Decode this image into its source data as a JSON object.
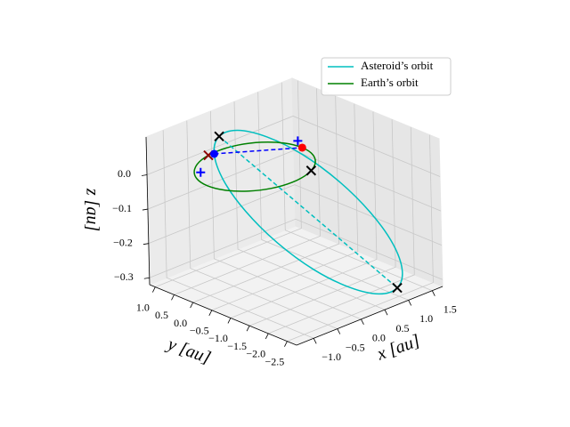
{
  "chart_data": {
    "type": "line3d",
    "xlabel": "x [au]",
    "ylabel": "y [au]",
    "zlabel": "z [au]",
    "xlim": [
      -1.36,
      1.72
    ],
    "ylim": [
      -2.75,
      1.15
    ],
    "zlim": [
      -0.32,
      0.11
    ],
    "xticks": [
      {
        "value": -1.0,
        "label": "−1.0"
      },
      {
        "value": -0.5,
        "label": "−0.5"
      },
      {
        "value": 0.0,
        "label": "0.0"
      },
      0.5,
      {
        "value": 1.0,
        "label": "1.0"
      },
      1.5
    ],
    "yticks": [
      {
        "value": 1.0,
        "label": "1.0"
      },
      0.5,
      {
        "value": 0.0,
        "label": "0.0"
      },
      {
        "value": -0.5,
        "label": "−0.5"
      },
      {
        "value": -1.0,
        "label": "−1.0"
      },
      {
        "value": -1.5,
        "label": "−1.5"
      },
      {
        "value": -2.0,
        "label": "−2.0"
      },
      {
        "value": -2.5,
        "label": "−2.5"
      }
    ],
    "zticks": [
      {
        "value": -0.3,
        "label": "−0.3"
      },
      {
        "value": -0.2,
        "label": "−0.2"
      },
      {
        "value": -0.1,
        "label": "−0.1"
      },
      {
        "value": 0.0,
        "label": "0.0"
      }
    ],
    "grid": true,
    "legend": "upper right",
    "series": [
      {
        "name": "Asteroid’s orbit",
        "color": "#00bfbf",
        "x": [
          1.2,
          1.574,
          1.776,
          1.777,
          1.576,
          1.203,
          0.716,
          0.188,
          -0.3,
          -0.674,
          -0.876,
          -0.877,
          -0.676,
          -0.303,
          0.184,
          0.712,
          1.2
        ],
        "y": [
          -2.2,
          -1.865,
          -1.371,
          -0.796,
          -0.223,
          0.258,
          0.573,
          0.675,
          0.55,
          0.215,
          -0.279,
          -0.854,
          -1.427,
          -1.908,
          -2.223,
          -2.325,
          -2.2
        ],
        "z": [
          -0.32,
          -0.305,
          -0.261,
          -0.197,
          -0.12,
          -0.043,
          0.021,
          0.065,
          0.08,
          0.065,
          0.021,
          -0.043,
          -0.12,
          -0.197,
          -0.261,
          -0.305,
          -0.32
        ]
      },
      {
        "name": "Earth’s orbit",
        "color": "#008000",
        "x": [
          1,
          0.924,
          0.707,
          0.383,
          0,
          -0.383,
          -0.707,
          -0.924,
          -1,
          -0.924,
          -0.707,
          -0.383,
          0,
          0.383,
          0.707,
          0.924,
          1
        ],
        "y": [
          0,
          0.383,
          0.707,
          0.924,
          1,
          0.924,
          0.707,
          0.383,
          0,
          -0.383,
          -0.707,
          -0.924,
          -1,
          -0.924,
          -0.707,
          -0.383,
          0
        ],
        "z": [
          0,
          0,
          0,
          0,
          0,
          0,
          0,
          0,
          0,
          0,
          0,
          0,
          0,
          0,
          0,
          0,
          0
        ]
      }
    ],
    "dashed_lines": [
      {
        "color": "#00bfbf",
        "x": [
          -0.3,
          1.2
        ],
        "y": [
          0.55,
          -2.2
        ],
        "z": [
          0.08,
          -0.32
        ]
      },
      {
        "color": "#0000ff",
        "x": [
          -0.674,
          1.0
        ],
        "y": [
          0.215,
          0.0
        ],
        "z": [
          0.065,
          0
        ]
      }
    ],
    "markers": [
      {
        "marker": "x",
        "color": "#000000",
        "x": -0.3,
        "y": 0.55,
        "z": 0.08
      },
      {
        "marker": "x",
        "color": "#000000",
        "x": 1.2,
        "y": -2.2,
        "z": -0.32
      },
      {
        "marker": "x",
        "color": "#000000",
        "x": 0.5,
        "y": -0.866,
        "z": 0
      },
      {
        "marker": "x",
        "color": "#8b0000",
        "x": -0.2,
        "y": 0.98,
        "z": 0
      },
      {
        "marker": "+",
        "color": "#0000ff",
        "x": -0.9,
        "y": 0.3,
        "z": 0.02
      },
      {
        "marker": "+",
        "color": "#0000ff",
        "x": 0.95,
        "y": 0.05,
        "z": 0.02
      },
      {
        "marker": "o",
        "color": "#ff0000",
        "x": 1.0,
        "y": 0.0,
        "z": 0
      },
      {
        "marker": "o",
        "color": "#0000ff",
        "x": -0.674,
        "y": 0.215,
        "z": 0.065
      }
    ]
  }
}
